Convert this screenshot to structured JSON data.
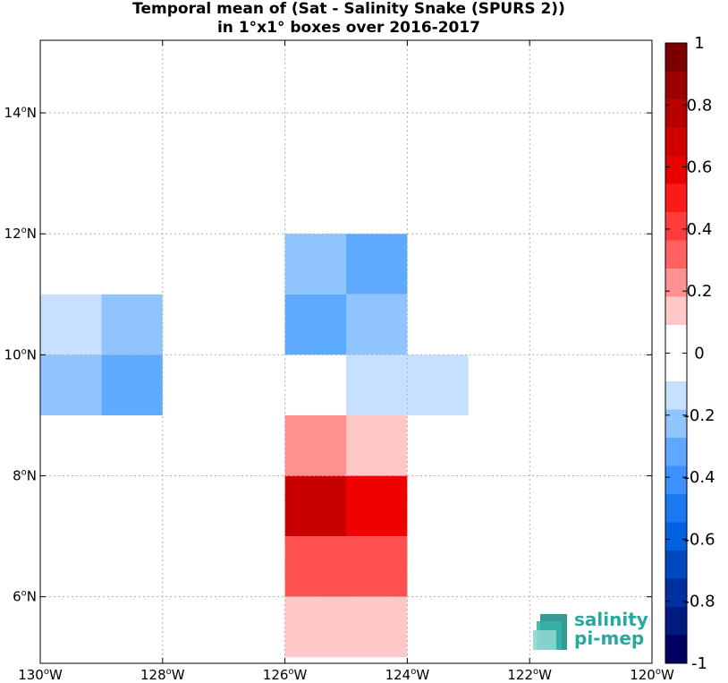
{
  "title_line1": "Temporal mean of (Sat - Salinity Snake (SPURS 2))",
  "title_line2": "in 1°x1° boxes over 2016-2017",
  "logo": {
    "line1": "salinity",
    "line2": "pi-mep",
    "color": "#27a9a0"
  },
  "chart_data": {
    "type": "heatmap",
    "title": "Temporal mean of (Sat - Salinity Snake (SPURS 2)) in 1°x1° boxes over 2016-2017",
    "x_axis": {
      "range": [
        -130,
        -120
      ],
      "ticks": [
        -130,
        -128,
        -126,
        -124,
        -122,
        -120
      ],
      "tick_labels": [
        "130°W",
        "128°W",
        "126°W",
        "124°W",
        "122°W",
        "120°W"
      ]
    },
    "y_axis": {
      "range": [
        4.9,
        15.2
      ],
      "ticks": [
        6,
        8,
        10,
        12,
        14
      ],
      "tick_labels": [
        "6°N",
        "8°N",
        "10°N",
        "12°N",
        "14°N"
      ]
    },
    "grid": true,
    "colorbar": {
      "range": [
        -1,
        1
      ],
      "tick_values": [
        1,
        0.8,
        0.6,
        0.4,
        0.2,
        0,
        -0.2,
        -0.4,
        -0.6,
        -0.8,
        -1
      ],
      "tick_labels": [
        "1",
        "0.8",
        "0.6",
        "0.4",
        "0.2",
        "0",
        "-0.2",
        "-0.4",
        "-0.6",
        "-0.8",
        "-1"
      ],
      "colors_top_to_bottom": [
        "#7a0000",
        "#9c0000",
        "#b80000",
        "#d00000",
        "#e80000",
        "#ff1a1a",
        "#ff3c3c",
        "#ff6060",
        "#ff9090",
        "#ffc8c8",
        "#ffffff",
        "#ffffff",
        "#c8e0ff",
        "#90c4ff",
        "#60a8ff",
        "#3c90ff",
        "#1a78f0",
        "#0060e0",
        "#0048c0",
        "#0030a0",
        "#001a80",
        "#000060"
      ]
    },
    "cells": [
      {
        "lon": [
          -130,
          -129
        ],
        "lat": [
          10,
          11
        ],
        "value": -0.12,
        "color": "#c8e0ff"
      },
      {
        "lon": [
          -129,
          -128
        ],
        "lat": [
          10,
          11
        ],
        "value": -0.25,
        "color": "#90c4ff"
      },
      {
        "lon": [
          -130,
          -129
        ],
        "lat": [
          9,
          10
        ],
        "value": -0.25,
        "color": "#90c4ff"
      },
      {
        "lon": [
          -129,
          -128
        ],
        "lat": [
          9,
          10
        ],
        "value": -0.35,
        "color": "#5eaaff"
      },
      {
        "lon": [
          -126,
          -125
        ],
        "lat": [
          11,
          12
        ],
        "value": -0.25,
        "color": "#90c4ff"
      },
      {
        "lon": [
          -125,
          -124
        ],
        "lat": [
          11,
          12
        ],
        "value": -0.35,
        "color": "#5eaaff"
      },
      {
        "lon": [
          -126,
          -125
        ],
        "lat": [
          10,
          11
        ],
        "value": -0.35,
        "color": "#5eaaff"
      },
      {
        "lon": [
          -125,
          -124
        ],
        "lat": [
          10,
          11
        ],
        "value": -0.25,
        "color": "#90c4ff"
      },
      {
        "lon": [
          -126,
          -125
        ],
        "lat": [
          9,
          10
        ],
        "value": 0.0,
        "color": "#ffffff"
      },
      {
        "lon": [
          -125,
          -124
        ],
        "lat": [
          9,
          10
        ],
        "value": -0.12,
        "color": "#c8e0ff"
      },
      {
        "lon": [
          -124,
          -123
        ],
        "lat": [
          9,
          10
        ],
        "value": -0.12,
        "color": "#c8e0ff"
      },
      {
        "lon": [
          -126,
          -125
        ],
        "lat": [
          8,
          9
        ],
        "value": 0.25,
        "color": "#ff9090"
      },
      {
        "lon": [
          -125,
          -124
        ],
        "lat": [
          8,
          9
        ],
        "value": 0.12,
        "color": "#ffc8c8"
      },
      {
        "lon": [
          -126,
          -125
        ],
        "lat": [
          7,
          8
        ],
        "value": 0.78,
        "color": "#c80000"
      },
      {
        "lon": [
          -125,
          -124
        ],
        "lat": [
          7,
          8
        ],
        "value": 0.65,
        "color": "#f00000"
      },
      {
        "lon": [
          -126,
          -125
        ],
        "lat": [
          6,
          7
        ],
        "value": 0.35,
        "color": "#ff5050"
      },
      {
        "lon": [
          -125,
          -124
        ],
        "lat": [
          6,
          7
        ],
        "value": 0.35,
        "color": "#ff5050"
      },
      {
        "lon": [
          -126,
          -125
        ],
        "lat": [
          5,
          6
        ],
        "value": 0.12,
        "color": "#ffc8c8"
      },
      {
        "lon": [
          -125,
          -124
        ],
        "lat": [
          5,
          6
        ],
        "value": 0.12,
        "color": "#ffc8c8"
      }
    ]
  }
}
